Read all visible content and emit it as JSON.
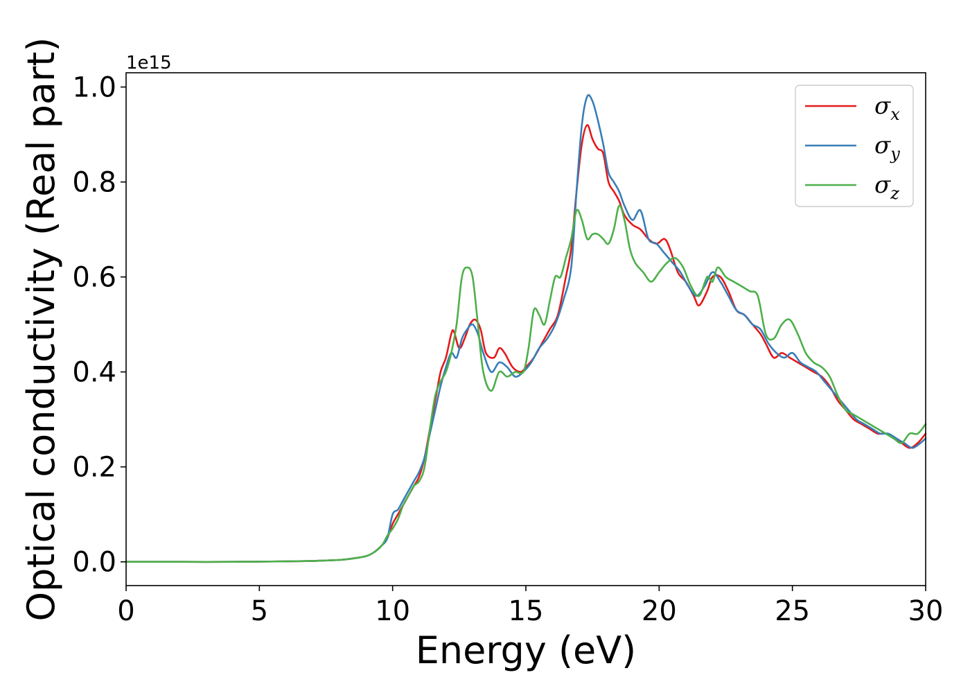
{
  "chart_data": {
    "type": "line",
    "title": "",
    "xlabel": "Energy (eV)",
    "ylabel": "Optical conductivity (Real part)",
    "y_offset_text": "1e15",
    "xlim": [
      0,
      30
    ],
    "ylim": [
      -0.05,
      1.03
    ],
    "y_scale_factor": 1000000000000000.0,
    "xticks": [
      0,
      5,
      10,
      15,
      20,
      25,
      30
    ],
    "xtick_labels": [
      "0",
      "5",
      "10",
      "15",
      "20",
      "25",
      "30"
    ],
    "yticks": [
      0.0,
      0.2,
      0.4,
      0.6,
      0.8,
      1.0
    ],
    "ytick_labels": [
      "0.0",
      "0.2",
      "0.4",
      "0.6",
      "0.8",
      "1.0"
    ],
    "grid": false,
    "legend_position": "top-right",
    "series": [
      {
        "name": "σx",
        "legend_base": "σ",
        "legend_sub": "x",
        "color": "#e41a1c",
        "x": [
          0,
          2,
          4,
          6,
          7,
          8,
          8.5,
          9,
          9.3,
          9.6,
          9.8,
          10,
          10.2,
          10.4,
          10.6,
          10.8,
          11,
          11.2,
          11.4,
          11.6,
          11.8,
          12,
          12.2,
          12.3,
          12.5,
          12.7,
          12.9,
          13.1,
          13.3,
          13.5,
          13.8,
          14.0,
          14.2,
          14.5,
          14.8,
          15.0,
          15.3,
          15.6,
          15.9,
          16.2,
          16.5,
          16.7,
          16.9,
          17.1,
          17.3,
          17.5,
          17.7,
          17.9,
          18.1,
          18.3,
          18.5,
          18.7,
          19.0,
          19.3,
          19.6,
          19.9,
          20.2,
          20.4,
          20.7,
          21.0,
          21.3,
          21.5,
          21.8,
          22.0,
          22.3,
          22.6,
          22.9,
          23.2,
          23.5,
          23.8,
          24.0,
          24.3,
          24.6,
          24.9,
          25.2,
          25.5,
          25.8,
          26.1,
          26.4,
          26.7,
          27.0,
          27.3,
          27.6,
          27.9,
          28.2,
          28.5,
          28.8,
          29.1,
          29.4,
          29.7,
          30.0
        ],
        "y": [
          0.0,
          0.0,
          0.0,
          0.001,
          0.002,
          0.004,
          0.007,
          0.012,
          0.02,
          0.035,
          0.05,
          0.08,
          0.1,
          0.12,
          0.14,
          0.16,
          0.18,
          0.22,
          0.28,
          0.34,
          0.4,
          0.43,
          0.48,
          0.485,
          0.45,
          0.47,
          0.5,
          0.51,
          0.49,
          0.44,
          0.43,
          0.45,
          0.44,
          0.41,
          0.4,
          0.41,
          0.43,
          0.46,
          0.49,
          0.52,
          0.6,
          0.66,
          0.78,
          0.88,
          0.92,
          0.89,
          0.87,
          0.86,
          0.8,
          0.78,
          0.76,
          0.73,
          0.71,
          0.7,
          0.68,
          0.67,
          0.68,
          0.66,
          0.61,
          0.59,
          0.56,
          0.54,
          0.57,
          0.6,
          0.6,
          0.57,
          0.53,
          0.52,
          0.5,
          0.48,
          0.46,
          0.43,
          0.44,
          0.43,
          0.42,
          0.41,
          0.4,
          0.39,
          0.37,
          0.34,
          0.32,
          0.3,
          0.29,
          0.28,
          0.27,
          0.27,
          0.26,
          0.25,
          0.24,
          0.25,
          0.27
        ]
      },
      {
        "name": "σy",
        "legend_base": "σ",
        "legend_sub": "y",
        "color": "#377eb8",
        "x": [
          0,
          2,
          4,
          6,
          7,
          8,
          8.5,
          9,
          9.3,
          9.6,
          9.8,
          10,
          10.2,
          10.4,
          10.6,
          10.8,
          11,
          11.2,
          11.4,
          11.6,
          11.8,
          12,
          12.2,
          12.4,
          12.6,
          12.8,
          13.0,
          13.2,
          13.4,
          13.7,
          14.0,
          14.3,
          14.6,
          14.9,
          15.2,
          15.5,
          15.8,
          16.1,
          16.4,
          16.7,
          16.9,
          17.1,
          17.3,
          17.5,
          17.7,
          17.9,
          18.1,
          18.3,
          18.5,
          18.7,
          19.0,
          19.3,
          19.6,
          19.9,
          20.2,
          20.5,
          20.8,
          21.1,
          21.4,
          21.7,
          22.0,
          22.3,
          22.6,
          22.9,
          23.2,
          23.5,
          23.8,
          24.1,
          24.4,
          24.7,
          25.0,
          25.3,
          25.6,
          25.9,
          26.2,
          26.5,
          26.8,
          27.1,
          27.4,
          27.7,
          28.0,
          28.3,
          28.6,
          28.9,
          29.2,
          29.5,
          29.8,
          30.0
        ],
        "y": [
          0.0,
          0.0,
          0.0,
          0.001,
          0.002,
          0.004,
          0.007,
          0.012,
          0.02,
          0.035,
          0.05,
          0.1,
          0.11,
          0.13,
          0.15,
          0.17,
          0.19,
          0.22,
          0.27,
          0.32,
          0.37,
          0.41,
          0.44,
          0.43,
          0.47,
          0.49,
          0.5,
          0.48,
          0.44,
          0.4,
          0.42,
          0.41,
          0.39,
          0.4,
          0.42,
          0.45,
          0.47,
          0.5,
          0.55,
          0.62,
          0.78,
          0.92,
          0.98,
          0.97,
          0.93,
          0.88,
          0.82,
          0.8,
          0.78,
          0.75,
          0.72,
          0.74,
          0.68,
          0.67,
          0.65,
          0.63,
          0.61,
          0.58,
          0.56,
          0.58,
          0.61,
          0.59,
          0.56,
          0.53,
          0.52,
          0.5,
          0.49,
          0.46,
          0.44,
          0.43,
          0.44,
          0.42,
          0.41,
          0.4,
          0.38,
          0.36,
          0.34,
          0.32,
          0.3,
          0.29,
          0.28,
          0.27,
          0.27,
          0.26,
          0.25,
          0.24,
          0.25,
          0.26
        ]
      },
      {
        "name": "σz",
        "legend_base": "σ",
        "legend_sub": "z",
        "color": "#4daf4a",
        "x": [
          0,
          2,
          4,
          6,
          7,
          8,
          8.5,
          9,
          9.3,
          9.6,
          9.8,
          10,
          10.2,
          10.4,
          10.6,
          10.8,
          11,
          11.2,
          11.4,
          11.6,
          11.8,
          12,
          12.2,
          12.4,
          12.6,
          12.8,
          13.0,
          13.2,
          13.4,
          13.7,
          14.0,
          14.3,
          14.6,
          14.9,
          15.1,
          15.3,
          15.5,
          15.7,
          15.9,
          16.1,
          16.3,
          16.5,
          16.7,
          16.9,
          17.1,
          17.3,
          17.5,
          17.7,
          17.9,
          18.1,
          18.3,
          18.5,
          18.7,
          18.9,
          19.1,
          19.4,
          19.7,
          20.0,
          20.3,
          20.6,
          20.9,
          21.2,
          21.5,
          21.8,
          22.0,
          22.2,
          22.5,
          22.8,
          23.1,
          23.4,
          23.7,
          24.0,
          24.3,
          24.6,
          24.9,
          25.2,
          25.5,
          25.8,
          26.1,
          26.4,
          26.7,
          27.0,
          27.3,
          27.6,
          27.9,
          28.2,
          28.5,
          28.8,
          29.1,
          29.4,
          29.7,
          30.0
        ],
        "y": [
          0.0,
          0.0,
          0.0,
          0.001,
          0.002,
          0.004,
          0.007,
          0.012,
          0.02,
          0.035,
          0.055,
          0.07,
          0.09,
          0.12,
          0.14,
          0.16,
          0.17,
          0.2,
          0.28,
          0.35,
          0.38,
          0.4,
          0.44,
          0.5,
          0.6,
          0.62,
          0.6,
          0.5,
          0.4,
          0.36,
          0.4,
          0.39,
          0.4,
          0.4,
          0.45,
          0.53,
          0.52,
          0.5,
          0.55,
          0.6,
          0.6,
          0.64,
          0.68,
          0.74,
          0.72,
          0.68,
          0.69,
          0.69,
          0.68,
          0.67,
          0.7,
          0.75,
          0.72,
          0.66,
          0.63,
          0.61,
          0.59,
          0.61,
          0.63,
          0.64,
          0.62,
          0.58,
          0.56,
          0.6,
          0.59,
          0.62,
          0.6,
          0.59,
          0.58,
          0.57,
          0.56,
          0.48,
          0.47,
          0.5,
          0.51,
          0.48,
          0.44,
          0.42,
          0.41,
          0.39,
          0.35,
          0.32,
          0.31,
          0.3,
          0.29,
          0.28,
          0.27,
          0.26,
          0.25,
          0.27,
          0.27,
          0.29
        ]
      }
    ]
  }
}
